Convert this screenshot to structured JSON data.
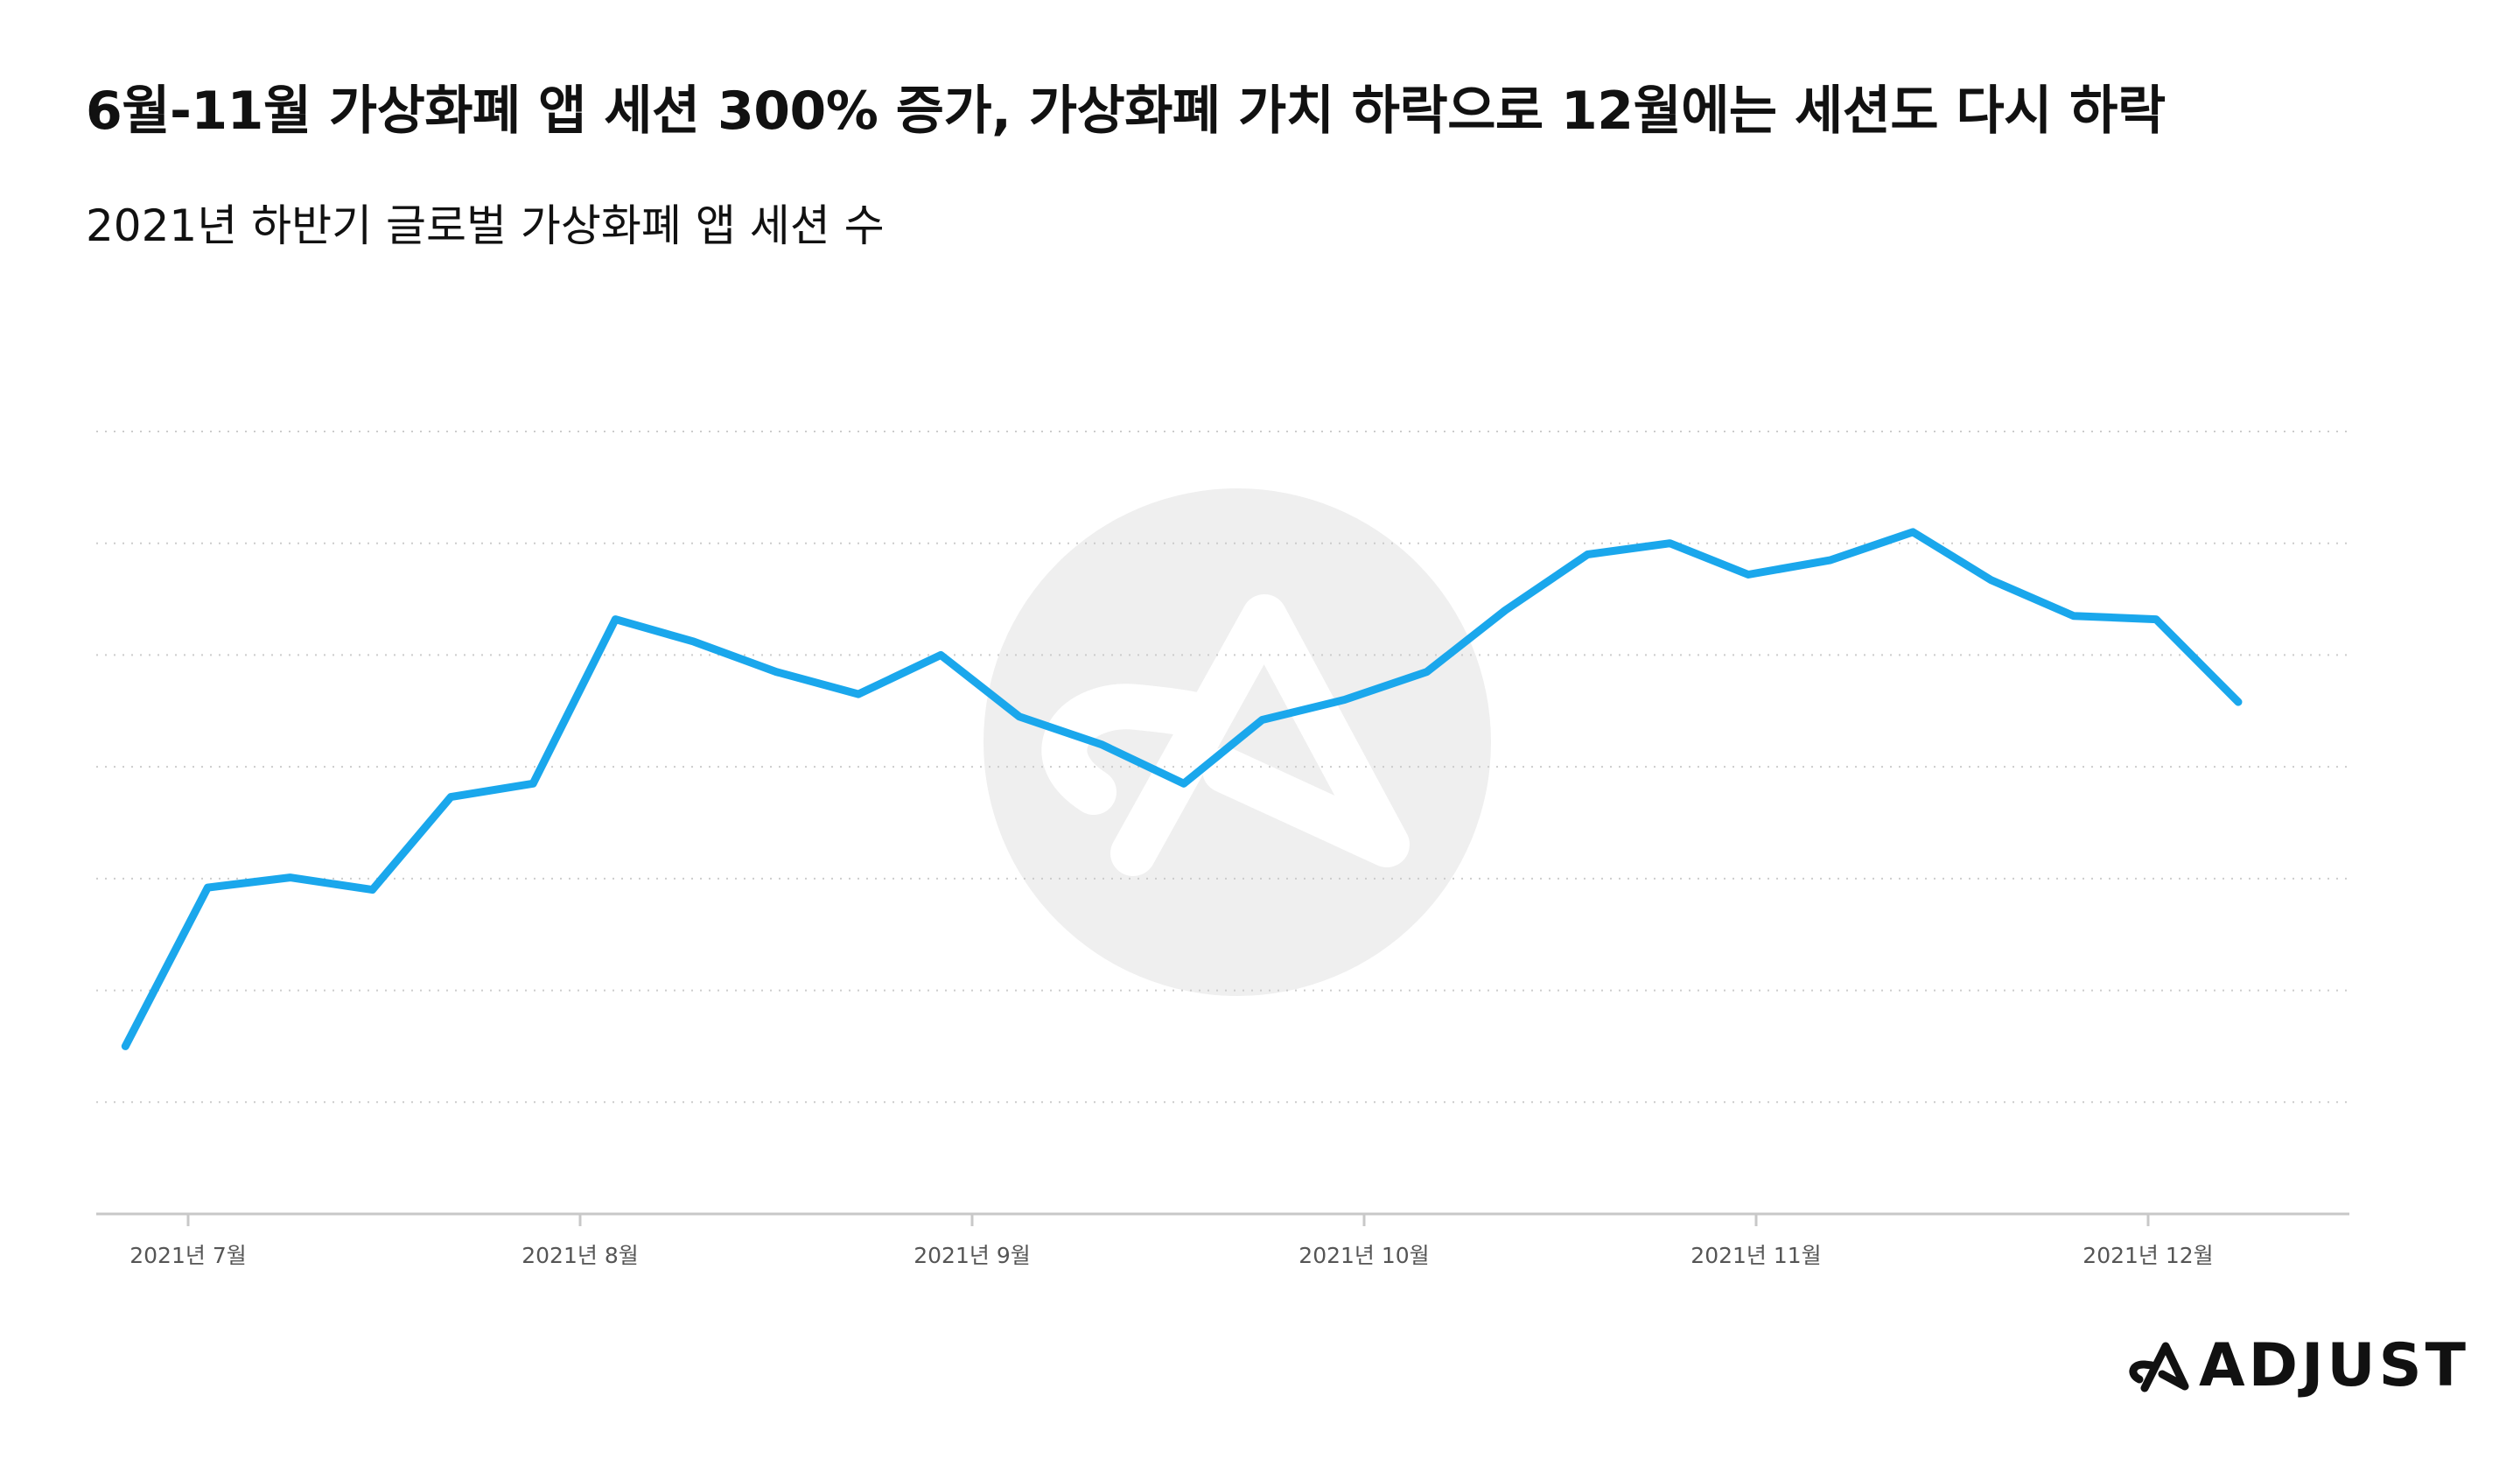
{
  "chart_data": {
    "type": "line",
    "title": "6월-11월 가상화폐 앱 세션 300% 증가, 가상화폐 가치 하락으로 12월에는 세션도 다시 하락",
    "subtitle": "2021년 하반기 글로벌 가상화폐 앱 세션 수",
    "xlabel": "",
    "ylabel": "",
    "x_ticks": [
      "2021년 7월",
      "2021년 8월",
      "2021년 9월",
      "2021년 10월",
      "2021년 11월",
      "2021년 12월"
    ],
    "x_ticks_pos": [
      0,
      1,
      2,
      3,
      4,
      5
    ],
    "ylim": [
      0,
      7
    ],
    "y_gridlines": [
      1,
      2,
      3,
      4,
      5,
      6,
      7
    ],
    "y_tick_labels_shown": false,
    "grid": true,
    "legend": "none",
    "line_color": "#1aa7ec",
    "series": [
      {
        "name": "",
        "x": [
          -0.16,
          0.05,
          0.26,
          0.47,
          0.67,
          0.88,
          1.09,
          1.29,
          1.5,
          1.71,
          1.92,
          2.12,
          2.33,
          2.54,
          2.74,
          2.95,
          3.16,
          3.36,
          3.57,
          3.78,
          3.98,
          4.19,
          4.4,
          4.6,
          4.81,
          5.02,
          5.23
        ],
        "y": [
          1.5,
          2.92,
          3.01,
          2.9,
          3.73,
          3.85,
          5.32,
          5.12,
          4.85,
          4.65,
          5.0,
          4.45,
          4.2,
          3.85,
          4.42,
          4.6,
          4.85,
          5.4,
          5.9,
          6.0,
          5.72,
          5.85,
          6.1,
          5.67,
          5.35,
          5.32,
          4.58
        ]
      }
    ]
  },
  "brand": {
    "name": "ADJUST"
  },
  "colors": {
    "line": "#1aa7ec",
    "grid": "#cccccc",
    "axis": "#c8c8c8",
    "watermark": "#efefef"
  }
}
